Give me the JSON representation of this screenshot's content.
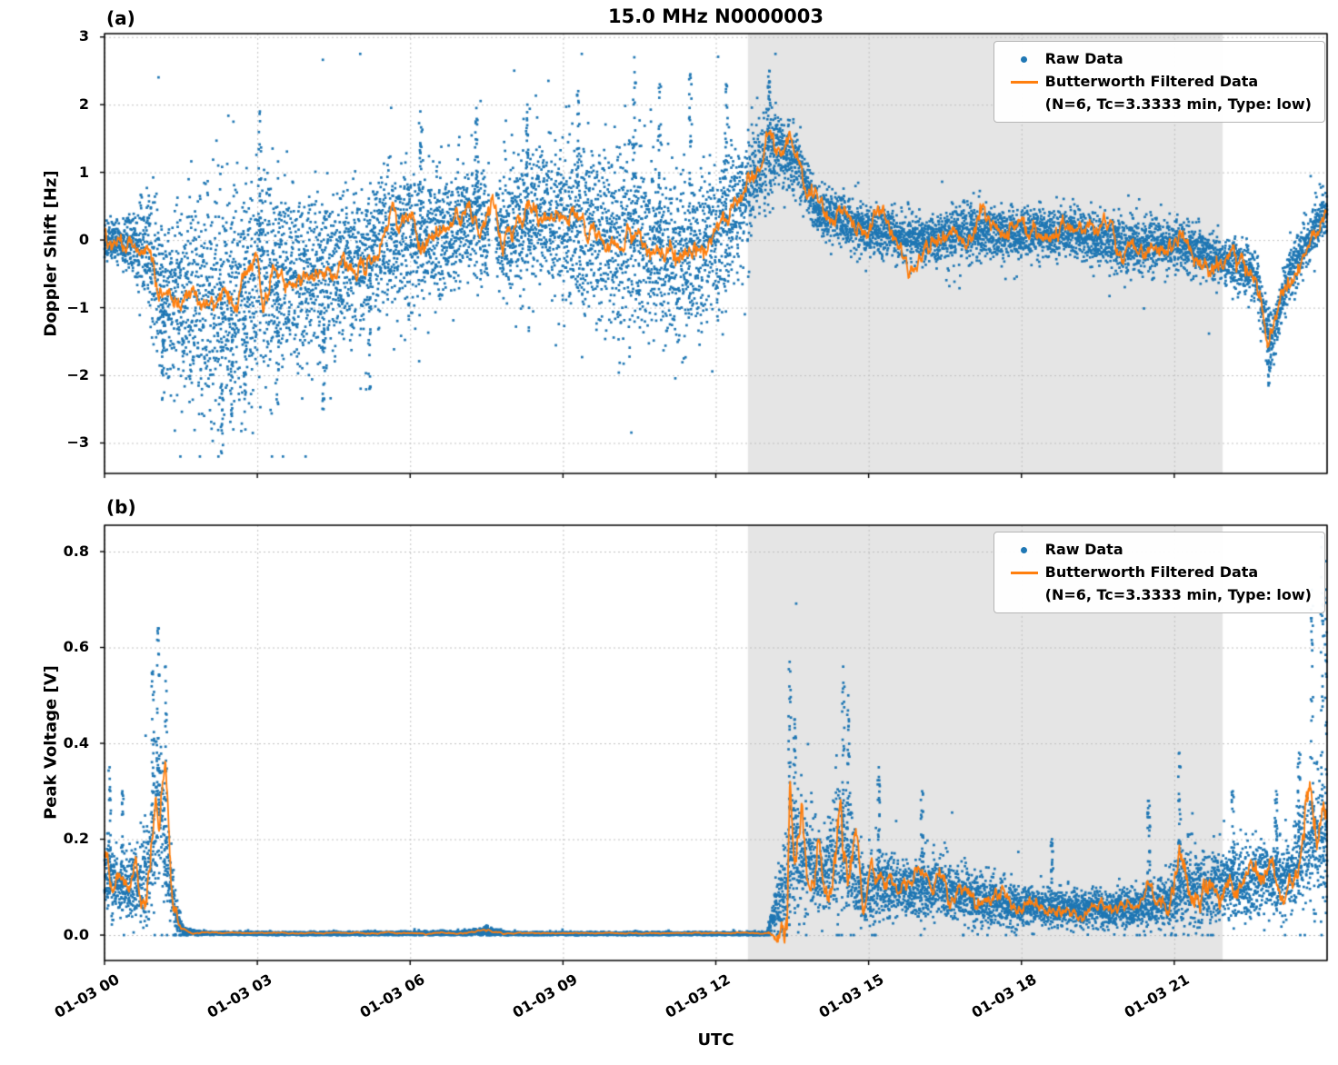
{
  "legend": {
    "raw_label": "Raw Data",
    "filtered_label": "Butterworth Filtered Data",
    "filtered_params": "(N=6, Tc=3.3333 min, Type: low)"
  },
  "colors": {
    "raw": "#1f77b4",
    "filtered": "#ff7f0e",
    "shade": "#e5e5e5",
    "grid": "#c0c0c0",
    "frame": "#000000"
  },
  "chart_data": [
    {
      "type": "scatter",
      "panel_label": "(a)",
      "title": "15.0 MHz N0000003",
      "ylabel": "Doppler Shift [Hz]",
      "xlabel": "",
      "xlim": [
        0,
        24
      ],
      "ylim": [
        -3.45,
        3.05
      ],
      "clamp": [
        -3.2,
        2.75
      ],
      "yticks": [
        -3,
        -2,
        -1,
        0,
        1,
        2,
        3
      ],
      "ytick_labels": [
        "−3",
        "−2",
        "−1",
        "0",
        "1",
        "2",
        "3"
      ],
      "xticks": [
        0,
        3,
        6,
        9,
        12,
        15,
        18,
        21
      ],
      "xtick_labels": [
        "01-03 00",
        "01-03 03",
        "01-03 06",
        "01-03 09",
        "01-03 12",
        "01-03 15",
        "01-03 18",
        "01-03 21"
      ],
      "shade_region": [
        12.63,
        21.95
      ],
      "grid": true,
      "legend_position": "upper right",
      "series": [
        {
          "name": "Raw Data",
          "type": "scatter",
          "color": "#1f77b4",
          "gaps": [
            [
              7.56,
              7.68
            ]
          ],
          "envelope": {
            "t": [
              0,
              0.5,
              0.9,
              1.1,
              1.5,
              2.0,
              2.5,
              3.0,
              3.5,
              4.0,
              4.5,
              5.0,
              5.5,
              6.0,
              6.5,
              7.0,
              7.5,
              8.0,
              8.5,
              9.0,
              9.5,
              10.0,
              10.5,
              11.0,
              11.5,
              12.0,
              12.5,
              12.9,
              13.2,
              13.6,
              14.0,
              15.0,
              16.0,
              17.0,
              18.0,
              19.0,
              20.0,
              21.0,
              22.0,
              22.6,
              22.9,
              23.3,
              23.7,
              24.0
            ],
            "center": [
              0.0,
              -0.05,
              -0.2,
              -0.8,
              -0.9,
              -0.9,
              -0.9,
              -0.6,
              -0.5,
              -0.5,
              -0.5,
              -0.35,
              0.0,
              0.0,
              0.0,
              0.3,
              0.2,
              0.2,
              0.35,
              0.25,
              0.1,
              0.0,
              0.0,
              -0.2,
              -0.25,
              0.0,
              0.6,
              1.1,
              1.4,
              1.1,
              0.4,
              0.15,
              0.0,
              0.1,
              0.1,
              0.1,
              -0.1,
              -0.05,
              -0.3,
              -0.5,
              -1.5,
              -0.4,
              0.1,
              0.4
            ],
            "spread": [
              0.25,
              0.35,
              0.9,
              1.1,
              1.3,
              1.6,
              1.7,
              1.4,
              1.2,
              1.1,
              1.1,
              1.0,
              0.9,
              1.0,
              0.9,
              0.8,
              0.7,
              0.9,
              1.0,
              1.1,
              1.2,
              1.3,
              1.3,
              1.2,
              1.1,
              1.0,
              0.8,
              0.6,
              0.5,
              0.4,
              0.3,
              0.35,
              0.3,
              0.35,
              0.3,
              0.3,
              0.35,
              0.35,
              0.3,
              0.35,
              0.4,
              0.35,
              0.3,
              0.35
            ]
          },
          "spikes": [
            {
              "t": 1.15,
              "y": -2.0
            },
            {
              "t": 2.3,
              "y": -3.15
            },
            {
              "t": 2.5,
              "y": -2.6
            },
            {
              "t": 2.75,
              "y": -2.35
            },
            {
              "t": 3.05,
              "y": 1.9
            },
            {
              "t": 3.4,
              "y": -2.4
            },
            {
              "t": 4.3,
              "y": -2.5
            },
            {
              "t": 5.2,
              "y": -2.2
            },
            {
              "t": 6.2,
              "y": 1.9
            },
            {
              "t": 7.3,
              "y": 1.95
            },
            {
              "t": 8.3,
              "y": 2.0
            },
            {
              "t": 9.3,
              "y": 2.2
            },
            {
              "t": 10.4,
              "y": 2.7
            },
            {
              "t": 10.9,
              "y": 2.3
            },
            {
              "t": 11.5,
              "y": 2.45
            },
            {
              "t": 12.2,
              "y": 2.3
            },
            {
              "t": 13.05,
              "y": 2.5
            },
            {
              "t": 22.85,
              "y": -2.15
            }
          ]
        },
        {
          "name": "Butterworth Filtered Data (N=6, Tc=3.3333 min, Type: low)",
          "type": "line",
          "color": "#ff7f0e",
          "wiggle": 0.05,
          "t": [
            0,
            0.3,
            0.6,
            0.9,
            1.05,
            1.2,
            1.5,
            1.8,
            2.1,
            2.4,
            2.6,
            2.8,
            3.0,
            3.1,
            3.3,
            3.6,
            3.9,
            4.2,
            4.5,
            4.8,
            5.1,
            5.4,
            5.6,
            5.8,
            6.0,
            6.2,
            6.5,
            6.8,
            7.0,
            7.2,
            7.4,
            7.6,
            7.8,
            8.0,
            8.3,
            8.6,
            8.9,
            9.2,
            9.5,
            9.8,
            10.1,
            10.4,
            10.7,
            11.0,
            11.3,
            11.6,
            11.9,
            12.2,
            12.5,
            12.8,
            13.0,
            13.2,
            13.4,
            13.6,
            13.8,
            14.0,
            14.2,
            14.5,
            14.8,
            15.0,
            15.3,
            15.5,
            15.8,
            16.0,
            16.3,
            16.6,
            16.9,
            17.2,
            17.5,
            17.8,
            18.1,
            18.4,
            18.7,
            19.0,
            19.3,
            19.6,
            19.9,
            20.2,
            20.5,
            20.8,
            21.1,
            21.4,
            21.7,
            22.0,
            22.3,
            22.6,
            22.8,
            23.0,
            23.2,
            23.4,
            23.6,
            23.8,
            24.0
          ],
          "y": [
            0.05,
            0.0,
            -0.1,
            -0.15,
            -0.9,
            -0.7,
            -1.0,
            -0.8,
            -1.05,
            -0.8,
            -1.0,
            -0.4,
            -0.35,
            -1.1,
            -0.45,
            -0.5,
            -0.55,
            -0.4,
            -0.6,
            -0.45,
            -0.35,
            -0.2,
            0.45,
            0.05,
            0.1,
            -0.15,
            0.05,
            0.15,
            0.35,
            0.45,
            0.1,
            0.35,
            0.0,
            0.15,
            0.4,
            0.35,
            0.25,
            0.3,
            0.1,
            0.05,
            -0.1,
            0.1,
            -0.2,
            -0.15,
            -0.3,
            -0.2,
            0.0,
            0.3,
            0.7,
            1.1,
            1.5,
            1.35,
            1.45,
            1.1,
            0.6,
            0.5,
            0.3,
            0.35,
            0.2,
            0.1,
            0.45,
            0.2,
            -0.5,
            -0.2,
            0.05,
            0.1,
            0.0,
            0.3,
            0.1,
            0.05,
            0.15,
            0.1,
            0.05,
            0.1,
            0.2,
            0.05,
            0.0,
            -0.1,
            -0.3,
            -0.1,
            0.1,
            -0.2,
            -0.4,
            -0.3,
            -0.25,
            -0.6,
            -1.55,
            -1.2,
            -0.6,
            -0.4,
            -0.15,
            0.2,
            0.4
          ]
        }
      ]
    },
    {
      "type": "scatter",
      "panel_label": "(b)",
      "title": "",
      "ylabel": "Peak Voltage [V]",
      "xlabel": "UTC",
      "xlim": [
        0,
        24
      ],
      "ylim": [
        -0.053,
        0.855
      ],
      "clamp": [
        0,
        0.84
      ],
      "yticks": [
        0.0,
        0.2,
        0.4,
        0.6,
        0.8
      ],
      "ytick_labels": [
        "0.0",
        "0.2",
        "0.4",
        "0.6",
        "0.8"
      ],
      "xticks": [
        0,
        3,
        6,
        9,
        12,
        15,
        18,
        21
      ],
      "xtick_labels": [
        "01-03 00",
        "01-03 03",
        "01-03 06",
        "01-03 09",
        "01-03 12",
        "01-03 15",
        "01-03 18",
        "01-03 21"
      ],
      "shade_region": [
        12.63,
        21.95
      ],
      "grid": true,
      "legend_position": "upper right",
      "series": [
        {
          "name": "Raw Data",
          "type": "scatter",
          "color": "#1f77b4",
          "gaps": [],
          "envelope": {
            "t": [
              0,
              0.3,
              0.6,
              0.9,
              1.0,
              1.1,
              1.25,
              1.4,
              1.55,
              2,
              4,
              7,
              7.5,
              8,
              10,
              13,
              13.4,
              13.5,
              13.8,
              14.1,
              14.5,
              14.9,
              15.3,
              15.8,
              16.3,
              17,
              18,
              19,
              20,
              20.8,
              21.2,
              21.8,
              22.3,
              22.8,
              23.3,
              23.65,
              23.9,
              24
            ],
            "center": [
              0.13,
              0.1,
              0.1,
              0.14,
              0.25,
              0.25,
              0.12,
              0.04,
              0.006,
              0.004,
              0.003,
              0.004,
              0.008,
              0.003,
              0.003,
              0.003,
              0.1,
              0.18,
              0.15,
              0.12,
              0.2,
              0.09,
              0.1,
              0.09,
              0.1,
              0.08,
              0.06,
              0.055,
              0.055,
              0.07,
              0.1,
              0.1,
              0.11,
              0.12,
              0.12,
              0.2,
              0.2,
              0.17
            ],
            "spread": [
              0.07,
              0.06,
              0.06,
              0.1,
              0.16,
              0.16,
              0.1,
              0.04,
              0.008,
              0.003,
              0.003,
              0.004,
              0.008,
              0.003,
              0.003,
              0.003,
              0.1,
              0.14,
              0.1,
              0.08,
              0.14,
              0.06,
              0.07,
              0.05,
              0.06,
              0.05,
              0.04,
              0.035,
              0.035,
              0.05,
              0.08,
              0.07,
              0.07,
              0.07,
              0.07,
              0.12,
              0.13,
              0.1
            ]
          },
          "spikes": [
            {
              "t": 0.1,
              "y": 0.35
            },
            {
              "t": 0.35,
              "y": 0.3
            },
            {
              "t": 0.95,
              "y": 0.55
            },
            {
              "t": 1.05,
              "y": 0.64
            },
            {
              "t": 1.2,
              "y": 0.56
            },
            {
              "t": 7.5,
              "y": 0.02
            },
            {
              "t": 13.45,
              "y": 0.57
            },
            {
              "t": 13.55,
              "y": 0.45
            },
            {
              "t": 14.5,
              "y": 0.56
            },
            {
              "t": 14.6,
              "y": 0.5
            },
            {
              "t": 15.2,
              "y": 0.35
            },
            {
              "t": 16.05,
              "y": 0.3
            },
            {
              "t": 18.6,
              "y": 0.2
            },
            {
              "t": 20.5,
              "y": 0.28
            },
            {
              "t": 21.1,
              "y": 0.38
            },
            {
              "t": 22.15,
              "y": 0.3
            },
            {
              "t": 23.0,
              "y": 0.3
            },
            {
              "t": 23.45,
              "y": 0.38
            },
            {
              "t": 23.7,
              "y": 0.72
            },
            {
              "t": 23.9,
              "y": 0.83
            },
            {
              "t": 23.97,
              "y": 0.78
            }
          ]
        },
        {
          "name": "Butterworth Filtered Data (N=6, Tc=3.3333 min, Type: low)",
          "type": "line",
          "color": "#ff7f0e",
          "wiggle": 0.012,
          "t": [
            0,
            0.15,
            0.3,
            0.45,
            0.6,
            0.75,
            0.9,
            1.0,
            1.1,
            1.2,
            1.3,
            1.4,
            1.5,
            1.7,
            2.0,
            3.0,
            4.0,
            5.0,
            6.0,
            7.0,
            7.4,
            7.5,
            7.6,
            8.0,
            9.0,
            10.0,
            11.0,
            12.0,
            13.0,
            13.35,
            13.4,
            13.45,
            13.55,
            13.7,
            13.85,
            14.0,
            14.15,
            14.3,
            14.45,
            14.6,
            14.75,
            14.9,
            15.05,
            15.2,
            15.4,
            15.6,
            15.8,
            16.0,
            16.2,
            16.4,
            16.6,
            16.8,
            17.0,
            17.3,
            17.6,
            17.9,
            18.2,
            18.5,
            18.8,
            19.1,
            19.4,
            19.7,
            20.0,
            20.3,
            20.5,
            20.7,
            20.9,
            21.1,
            21.3,
            21.5,
            21.7,
            21.9,
            22.1,
            22.3,
            22.5,
            22.7,
            22.9,
            23.1,
            23.3,
            23.5,
            23.65,
            23.8,
            23.9,
            24.0
          ],
          "y": [
            0.18,
            0.1,
            0.14,
            0.08,
            0.13,
            0.07,
            0.16,
            0.3,
            0.22,
            0.35,
            0.12,
            0.05,
            0.015,
            0.006,
            0.005,
            0.005,
            0.004,
            0.004,
            0.004,
            0.005,
            0.008,
            0.01,
            0.006,
            0.004,
            0.004,
            0.004,
            0.004,
            0.004,
            0.004,
            0.005,
            -0.015,
            0.3,
            0.15,
            0.22,
            0.1,
            0.18,
            0.08,
            0.12,
            0.28,
            0.1,
            0.25,
            0.08,
            0.12,
            0.09,
            0.14,
            0.08,
            0.1,
            0.12,
            0.09,
            0.11,
            0.07,
            0.1,
            0.08,
            0.06,
            0.09,
            0.05,
            0.07,
            0.05,
            0.06,
            0.05,
            0.06,
            0.05,
            0.06,
            0.05,
            0.12,
            0.06,
            0.05,
            0.18,
            0.07,
            0.06,
            0.13,
            0.09,
            0.15,
            0.09,
            0.13,
            0.11,
            0.16,
            0.09,
            0.12,
            0.18,
            0.3,
            0.17,
            0.28,
            0.2
          ]
        }
      ]
    }
  ]
}
